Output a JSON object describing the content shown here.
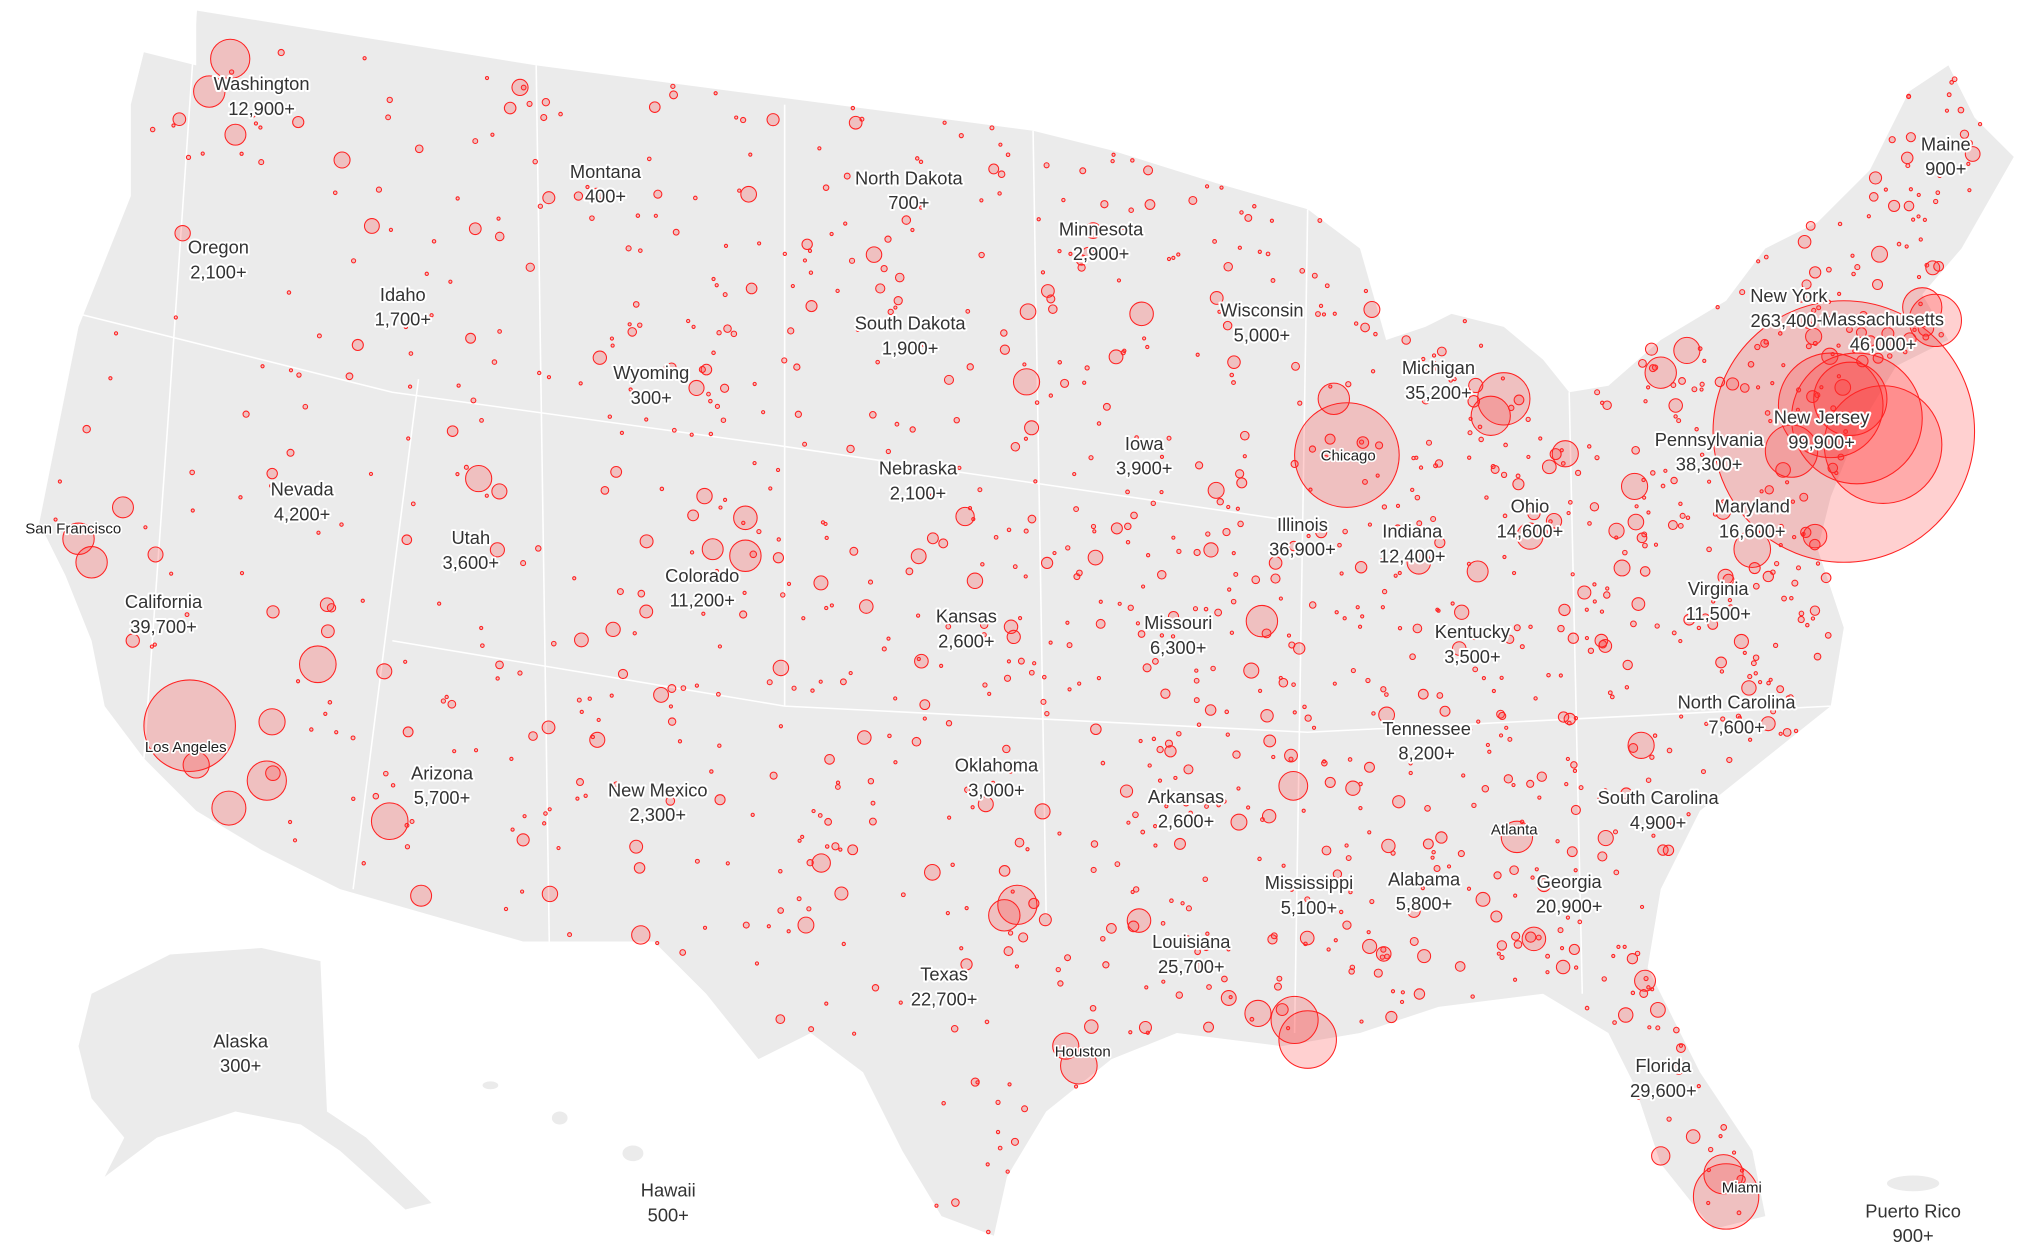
{
  "states": [
    {
      "name": "Washington",
      "count": "12,900+"
    },
    {
      "name": "Montana",
      "count": "400+"
    },
    {
      "name": "North Dakota",
      "count": "700+"
    },
    {
      "name": "Minnesota",
      "count": "2,900+"
    },
    {
      "name": "Maine",
      "count": "900+"
    },
    {
      "name": "Oregon",
      "count": "2,100+"
    },
    {
      "name": "Idaho",
      "count": "1,700+"
    },
    {
      "name": "Wisconsin",
      "count": "5,000+"
    },
    {
      "name": "New York",
      "count": "263,400+"
    },
    {
      "name": "Massachusetts",
      "count": "46,000+"
    },
    {
      "name": "South Dakota",
      "count": "1,900+"
    },
    {
      "name": "Wyoming",
      "count": "300+"
    },
    {
      "name": "Michigan",
      "count": "35,200+"
    },
    {
      "name": "New Jersey",
      "count": "99,900+"
    },
    {
      "name": "Pennsylvania",
      "count": "38,300+"
    },
    {
      "name": "Nebraska",
      "count": "2,100+"
    },
    {
      "name": "Iowa",
      "count": "3,900+"
    },
    {
      "name": "Nevada",
      "count": "4,200+"
    },
    {
      "name": "Illinois",
      "count": "36,900+"
    },
    {
      "name": "Indiana",
      "count": "12,400+"
    },
    {
      "name": "Ohio",
      "count": "14,600+"
    },
    {
      "name": "Maryland",
      "count": "16,600+"
    },
    {
      "name": "Utah",
      "count": "3,600+"
    },
    {
      "name": "Colorado",
      "count": "11,200+"
    },
    {
      "name": "California",
      "count": "39,700+"
    },
    {
      "name": "Virginia",
      "count": "11,500+"
    },
    {
      "name": "Kansas",
      "count": "2,600+"
    },
    {
      "name": "Missouri",
      "count": "6,300+"
    },
    {
      "name": "Kentucky",
      "count": "3,500+"
    },
    {
      "name": "North Carolina",
      "count": "7,600+"
    },
    {
      "name": "Tennessee",
      "count": "8,200+"
    },
    {
      "name": "Oklahoma",
      "count": "3,000+"
    },
    {
      "name": "Arizona",
      "count": "5,700+"
    },
    {
      "name": "New Mexico",
      "count": "2,300+"
    },
    {
      "name": "Arkansas",
      "count": "2,600+"
    },
    {
      "name": "South Carolina",
      "count": "4,900+"
    },
    {
      "name": "Mississippi",
      "count": "5,100+"
    },
    {
      "name": "Alabama",
      "count": "5,800+"
    },
    {
      "name": "Georgia",
      "count": "20,900+"
    },
    {
      "name": "Louisiana",
      "count": "25,700+"
    },
    {
      "name": "Texas",
      "count": "22,700+"
    },
    {
      "name": "Alaska",
      "count": "300+"
    },
    {
      "name": "Florida",
      "count": "29,600+"
    },
    {
      "name": "Hawaii",
      "count": "500+"
    },
    {
      "name": "Puerto Rico",
      "count": "900+"
    }
  ],
  "cities": [
    "San Francisco",
    "Chicago",
    "Los Angeles",
    "Houston",
    "Atlanta",
    "Miami"
  ]
}
